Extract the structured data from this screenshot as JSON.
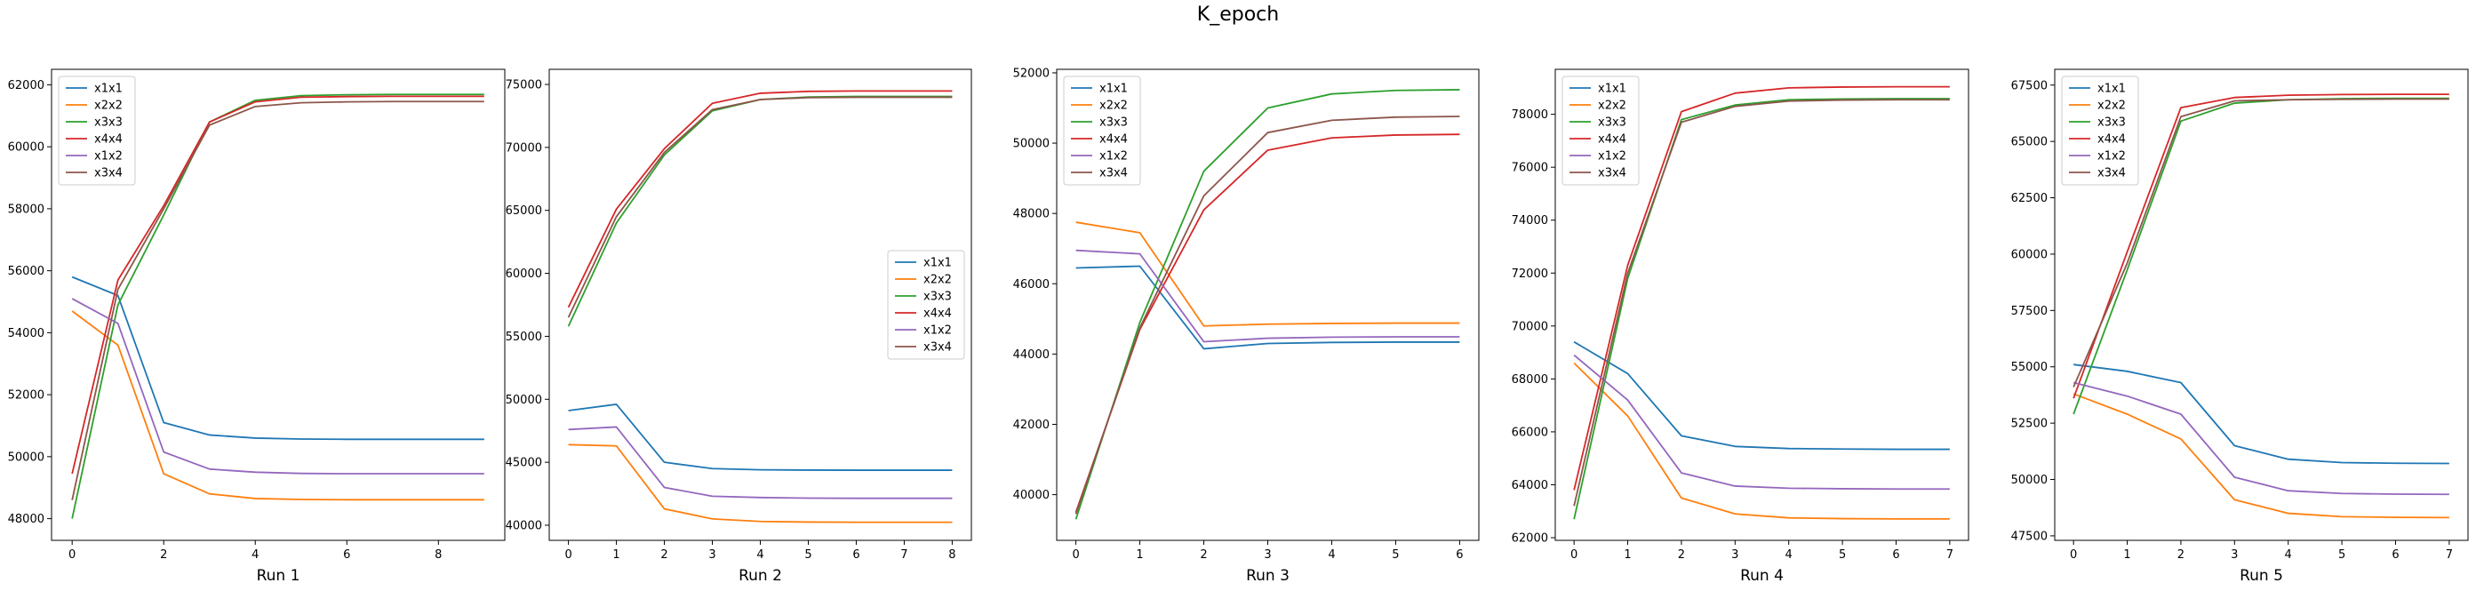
{
  "figure": {
    "title": "K_epoch"
  },
  "colors": {
    "x1x1": "#1f77b4",
    "x2x2": "#ff7f0e",
    "x3x3": "#2ca02c",
    "x4x4": "#d62728",
    "x1x2": "#9467bd",
    "x3x4": "#8c564b"
  },
  "chart_data": [
    {
      "type": "line",
      "title": "",
      "xlabel": "Run 1",
      "ylabel": "",
      "legend_position": "top-left",
      "grid": false,
      "xlim": [
        -0.45,
        9.45
      ],
      "ylim": [
        47300,
        62500
      ],
      "xticks": [
        0,
        2,
        4,
        6,
        8
      ],
      "yticks": [
        48000,
        50000,
        52000,
        54000,
        56000,
        58000,
        60000,
        62000
      ],
      "x": [
        0,
        1,
        2,
        3,
        4,
        5,
        6,
        7,
        8,
        9
      ],
      "series": [
        {
          "name": "x1x1",
          "values": [
            55800,
            55200,
            51100,
            50700,
            50600,
            50570,
            50560,
            50560,
            50560,
            50560
          ]
        },
        {
          "name": "x2x2",
          "values": [
            54700,
            53600,
            49450,
            48800,
            48650,
            48620,
            48610,
            48610,
            48610,
            48610
          ]
        },
        {
          "name": "x3x3",
          "values": [
            48000,
            54900,
            57800,
            60800,
            61500,
            61650,
            61680,
            61690,
            61690,
            61690
          ]
        },
        {
          "name": "x4x4",
          "values": [
            49450,
            55700,
            58100,
            60800,
            61450,
            61600,
            61620,
            61630,
            61630,
            61630
          ]
        },
        {
          "name": "x1x2",
          "values": [
            55100,
            54300,
            50150,
            49600,
            49500,
            49460,
            49450,
            49450,
            49450,
            49450
          ]
        },
        {
          "name": "x3x4",
          "values": [
            48600,
            55400,
            58000,
            60700,
            61300,
            61420,
            61450,
            61460,
            61460,
            61460
          ]
        }
      ]
    },
    {
      "type": "line",
      "title": "",
      "xlabel": "Run 2",
      "ylabel": "",
      "legend_position": "center-right",
      "grid": false,
      "xlim": [
        -0.4,
        8.4
      ],
      "ylim": [
        38800,
        76200
      ],
      "xticks": [
        0,
        1,
        2,
        3,
        4,
        5,
        6,
        7,
        8
      ],
      "yticks": [
        40000,
        45000,
        50000,
        55000,
        60000,
        65000,
        70000,
        75000
      ],
      "x": [
        0,
        1,
        2,
        3,
        4,
        5,
        6,
        7,
        8
      ],
      "series": [
        {
          "name": "x1x1",
          "values": [
            49100,
            49600,
            45000,
            44500,
            44400,
            44380,
            44370,
            44370,
            44370
          ]
        },
        {
          "name": "x2x2",
          "values": [
            46400,
            46300,
            41300,
            40500,
            40300,
            40250,
            40240,
            40240,
            40240
          ]
        },
        {
          "name": "x3x3",
          "values": [
            55800,
            64000,
            69400,
            72900,
            73800,
            74000,
            74050,
            74050,
            74050
          ]
        },
        {
          "name": "x4x4",
          "values": [
            57300,
            65100,
            69900,
            73500,
            74300,
            74450,
            74480,
            74480,
            74480
          ]
        },
        {
          "name": "x1x2",
          "values": [
            47600,
            47800,
            43000,
            42300,
            42200,
            42150,
            42140,
            42140,
            42140
          ]
        },
        {
          "name": "x3x4",
          "values": [
            56500,
            64500,
            69600,
            73000,
            73800,
            73950,
            73980,
            73980,
            73980
          ]
        }
      ]
    },
    {
      "type": "line",
      "title": "",
      "xlabel": "Run 3",
      "ylabel": "",
      "legend_position": "top-left",
      "grid": false,
      "xlim": [
        -0.3,
        6.3
      ],
      "ylim": [
        38700,
        52100
      ],
      "xticks": [
        0,
        1,
        2,
        3,
        4,
        5,
        6
      ],
      "yticks": [
        40000,
        42000,
        44000,
        46000,
        48000,
        50000,
        52000
      ],
      "x": [
        0,
        1,
        2,
        3,
        4,
        5,
        6
      ],
      "series": [
        {
          "name": "x1x1",
          "values": [
            46450,
            46500,
            44150,
            44300,
            44330,
            44340,
            44340
          ]
        },
        {
          "name": "x2x2",
          "values": [
            47750,
            47450,
            44800,
            44850,
            44870,
            44880,
            44880
          ]
        },
        {
          "name": "x3x3",
          "values": [
            39300,
            44900,
            49200,
            51000,
            51400,
            51500,
            51520
          ]
        },
        {
          "name": "x4x4",
          "values": [
            39500,
            44700,
            48100,
            49800,
            50150,
            50230,
            50250
          ]
        },
        {
          "name": "x1x2",
          "values": [
            46950,
            46850,
            44350,
            44450,
            44480,
            44490,
            44490
          ]
        },
        {
          "name": "x3x4",
          "values": [
            39450,
            44750,
            48500,
            50300,
            50650,
            50740,
            50760
          ]
        }
      ]
    },
    {
      "type": "line",
      "title": "",
      "xlabel": "Run 4",
      "ylabel": "",
      "legend_position": "top-left",
      "grid": false,
      "xlim": [
        -0.35,
        7.35
      ],
      "ylim": [
        61900,
        79700
      ],
      "xticks": [
        0,
        1,
        2,
        3,
        4,
        5,
        6,
        7
      ],
      "yticks": [
        62000,
        64000,
        66000,
        68000,
        70000,
        72000,
        74000,
        76000,
        78000
      ],
      "x": [
        0,
        1,
        2,
        3,
        4,
        5,
        6,
        7
      ],
      "series": [
        {
          "name": "x1x1",
          "values": [
            69400,
            68200,
            65850,
            65450,
            65370,
            65350,
            65340,
            65340
          ]
        },
        {
          "name": "x2x2",
          "values": [
            68600,
            66600,
            63500,
            62900,
            62750,
            62720,
            62710,
            62710
          ]
        },
        {
          "name": "x3x3",
          "values": [
            62700,
            71800,
            77800,
            78350,
            78550,
            78580,
            78590,
            78590
          ]
        },
        {
          "name": "x4x4",
          "values": [
            63800,
            72300,
            78100,
            78800,
            79000,
            79030,
            79040,
            79040
          ]
        },
        {
          "name": "x1x2",
          "values": [
            68900,
            67200,
            64450,
            63950,
            63870,
            63850,
            63840,
            63840
          ]
        },
        {
          "name": "x3x4",
          "values": [
            63200,
            72000,
            77700,
            78300,
            78500,
            78540,
            78550,
            78550
          ]
        }
      ]
    },
    {
      "type": "line",
      "title": "",
      "xlabel": "Run 5",
      "ylabel": "",
      "legend_position": "top-left",
      "grid": false,
      "xlim": [
        -0.35,
        7.35
      ],
      "ylim": [
        47300,
        68200
      ],
      "xticks": [
        0,
        1,
        2,
        3,
        4,
        5,
        6,
        7
      ],
      "yticks": [
        47500,
        50000,
        52500,
        55000,
        57500,
        60000,
        62500,
        65000,
        67500
      ],
      "x": [
        0,
        1,
        2,
        3,
        4,
        5,
        6,
        7
      ],
      "series": [
        {
          "name": "x1x1",
          "values": [
            55100,
            54800,
            54300,
            51500,
            50900,
            50750,
            50720,
            50710
          ]
        },
        {
          "name": "x2x2",
          "values": [
            53800,
            52900,
            51800,
            49100,
            48500,
            48350,
            48320,
            48310
          ]
        },
        {
          "name": "x3x3",
          "values": [
            52900,
            59300,
            65900,
            66700,
            66850,
            66900,
            66910,
            66910
          ]
        },
        {
          "name": "x4x4",
          "values": [
            53600,
            60100,
            66500,
            66950,
            67050,
            67080,
            67090,
            67090
          ]
        },
        {
          "name": "x1x2",
          "values": [
            54300,
            53700,
            52900,
            50100,
            49500,
            49380,
            49350,
            49340
          ]
        },
        {
          "name": "x3x4",
          "values": [
            54100,
            59600,
            66100,
            66800,
            66850,
            66870,
            66880,
            66880
          ]
        }
      ]
    }
  ]
}
